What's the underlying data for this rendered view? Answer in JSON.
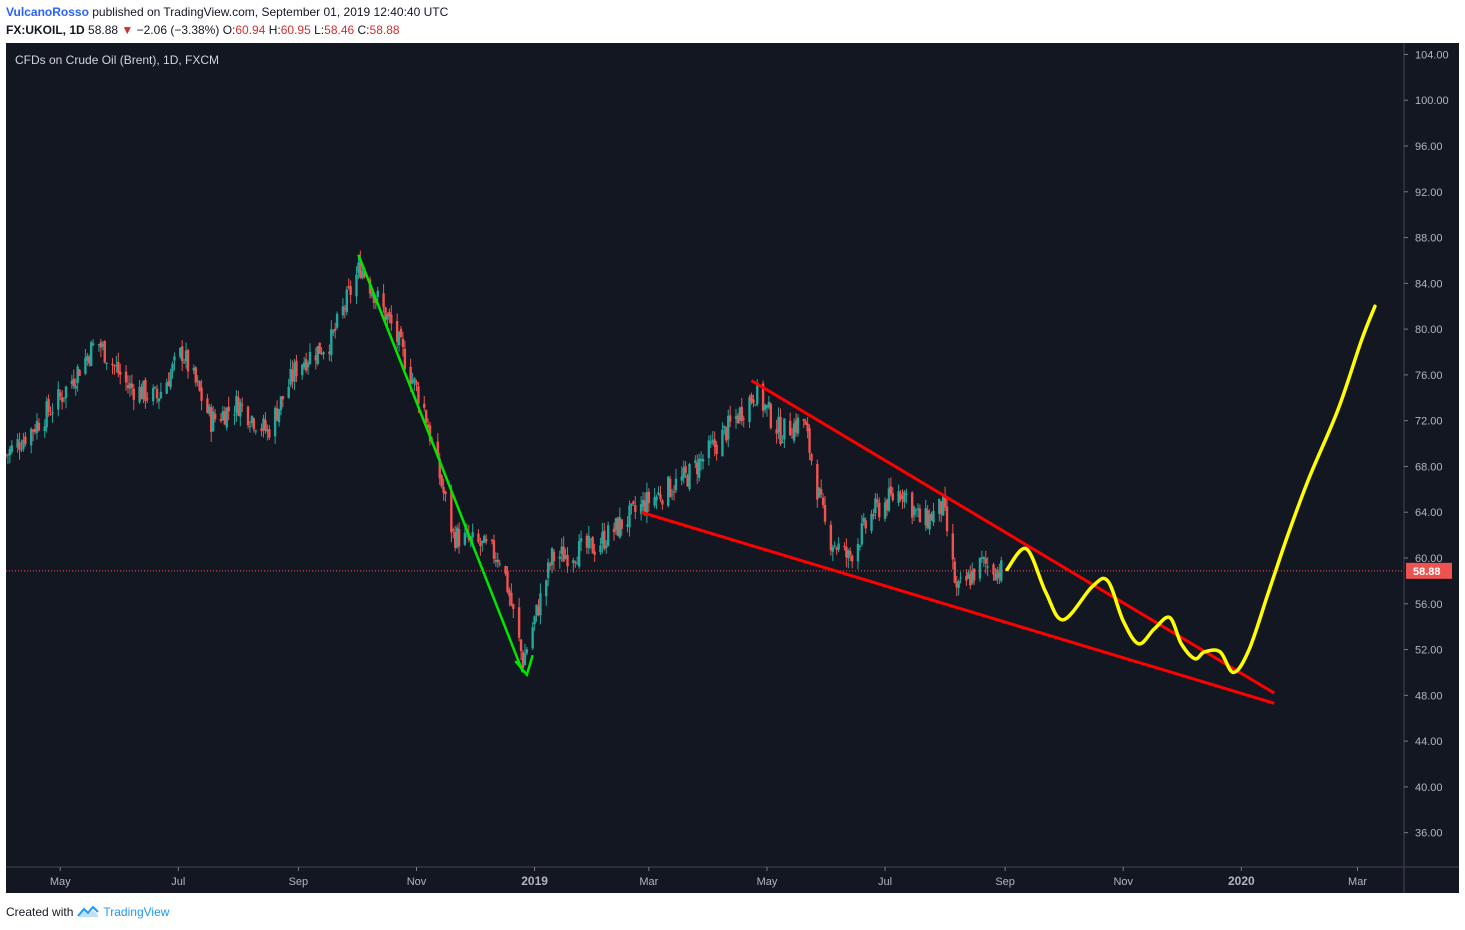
{
  "header": {
    "author": "VulcanoRosso",
    "published_text": "published on TradingView.com, September 01, 2019 12:40:40 UTC",
    "symbol": "FX:UKOIL, 1D",
    "last_price": "58.88",
    "change_arrow": "▼",
    "change": "−2.06 (−3.38%)",
    "o_label": "O:",
    "o_value": "60.94",
    "h_label": "H:",
    "h_value": "60.95",
    "l_label": "L:",
    "l_value": "58.46",
    "c_label": "C:",
    "c_value": "58.88"
  },
  "footer": {
    "created_with": "Created with",
    "brand": "TradingView",
    "logo_icon": "tradingview-logo-icon"
  },
  "colors": {
    "background": "#131722",
    "up": "#26a69a",
    "down": "#ef5350",
    "trend_green": "#00e600",
    "wedge_red": "#ff0000",
    "projection_yellow": "#ffff00",
    "price_line": "#ef5350",
    "axis_text": "#b2b5be"
  },
  "chart_data": {
    "type": "candlestick",
    "title": "CFDs on Crude Oil (Brent), 1D, FXCM",
    "ylim": [
      33,
      105
    ],
    "y_ticks": [
      "104.00",
      "100.00",
      "96.00",
      "92.00",
      "88.00",
      "84.00",
      "80.00",
      "76.00",
      "72.00",
      "68.00",
      "64.00",
      "60.00",
      "56.00",
      "52.00",
      "48.00",
      "44.00",
      "40.00",
      "36.00"
    ],
    "x_ticks": [
      "May",
      "Jul",
      "Sep",
      "Nov",
      "2019",
      "Mar",
      "May",
      "Jul",
      "Sep",
      "Nov",
      "2020",
      "Mar"
    ],
    "xlim": [
      "2018-04-03",
      "2020-03-25"
    ],
    "x_tick_dates": [
      "2018-05-01",
      "2018-07-01",
      "2018-09-01",
      "2018-11-01",
      "2019-01-01",
      "2019-03-01",
      "2019-05-01",
      "2019-07-01",
      "2019-09-01",
      "2019-11-01",
      "2020-01-01",
      "2020-03-01"
    ],
    "last_price": 58.88,
    "last_price_label": "58.88",
    "anchors": [
      {
        "date": "2018-04-03",
        "price": 69
      },
      {
        "date": "2018-04-15",
        "price": 71
      },
      {
        "date": "2018-05-01",
        "price": 74
      },
      {
        "date": "2018-05-20",
        "price": 79
      },
      {
        "date": "2018-06-05",
        "price": 75
      },
      {
        "date": "2018-06-20",
        "price": 74
      },
      {
        "date": "2018-07-03",
        "price": 78
      },
      {
        "date": "2018-07-18",
        "price": 72
      },
      {
        "date": "2018-08-01",
        "price": 73.5
      },
      {
        "date": "2018-08-16",
        "price": 71
      },
      {
        "date": "2018-09-01",
        "price": 77
      },
      {
        "date": "2018-09-18",
        "price": 79
      },
      {
        "date": "2018-10-03",
        "price": 85.5
      },
      {
        "date": "2018-10-20",
        "price": 80
      },
      {
        "date": "2018-11-05",
        "price": 73
      },
      {
        "date": "2018-11-20",
        "price": 62
      },
      {
        "date": "2018-12-05",
        "price": 61
      },
      {
        "date": "2018-12-15",
        "price": 60
      },
      {
        "date": "2018-12-26",
        "price": 51
      },
      {
        "date": "2019-01-10",
        "price": 60
      },
      {
        "date": "2019-02-01",
        "price": 61
      },
      {
        "date": "2019-02-15",
        "price": 63
      },
      {
        "date": "2019-03-01",
        "price": 65
      },
      {
        "date": "2019-03-20",
        "price": 67
      },
      {
        "date": "2019-04-05",
        "price": 70
      },
      {
        "date": "2019-04-25",
        "price": 74.5
      },
      {
        "date": "2019-05-08",
        "price": 71
      },
      {
        "date": "2019-05-20",
        "price": 72
      },
      {
        "date": "2019-06-01",
        "price": 62
      },
      {
        "date": "2019-06-12",
        "price": 60
      },
      {
        "date": "2019-06-25",
        "price": 64
      },
      {
        "date": "2019-07-10",
        "price": 66
      },
      {
        "date": "2019-07-20",
        "price": 63
      },
      {
        "date": "2019-07-31",
        "price": 64.5
      },
      {
        "date": "2019-08-07",
        "price": 57
      },
      {
        "date": "2019-08-20",
        "price": 59.5
      },
      {
        "date": "2019-08-30",
        "price": 58.88
      }
    ],
    "annotations": {
      "green_arrow": [
        {
          "date": "2018-10-02",
          "price": 86.5
        },
        {
          "date": "2018-12-26",
          "price": 50
        }
      ],
      "green_arrow_head": [
        {
          "date": "2018-12-22",
          "price": 51
        },
        {
          "date": "2018-12-28",
          "price": 49.8
        },
        {
          "date": "2018-12-31",
          "price": 51.5
        }
      ],
      "wedge_upper": [
        {
          "date": "2019-04-23",
          "price": 75.5
        },
        {
          "date": "2020-01-18",
          "price": 48.2
        }
      ],
      "wedge_lower": [
        {
          "date": "2019-02-25",
          "price": 64
        },
        {
          "date": "2020-01-18",
          "price": 47.3
        }
      ],
      "projection": [
        {
          "date": "2019-09-02",
          "price": 59
        },
        {
          "date": "2019-09-12",
          "price": 60.8
        },
        {
          "date": "2019-09-22",
          "price": 57
        },
        {
          "date": "2019-10-01",
          "price": 54.6
        },
        {
          "date": "2019-10-16",
          "price": 57.5
        },
        {
          "date": "2019-10-24",
          "price": 58
        },
        {
          "date": "2019-11-01",
          "price": 54.5
        },
        {
          "date": "2019-11-09",
          "price": 52.5
        },
        {
          "date": "2019-11-17",
          "price": 53.8
        },
        {
          "date": "2019-11-25",
          "price": 54.8
        },
        {
          "date": "2019-12-01",
          "price": 52.5
        },
        {
          "date": "2019-12-08",
          "price": 51.2
        },
        {
          "date": "2019-12-13",
          "price": 51.8
        },
        {
          "date": "2019-12-21",
          "price": 51.8
        },
        {
          "date": "2019-12-28",
          "price": 50
        },
        {
          "date": "2020-01-05",
          "price": 52
        },
        {
          "date": "2020-01-15",
          "price": 57
        },
        {
          "date": "2020-01-25",
          "price": 62
        },
        {
          "date": "2020-02-05",
          "price": 67
        },
        {
          "date": "2020-02-20",
          "price": 73
        },
        {
          "date": "2020-03-03",
          "price": 79
        },
        {
          "date": "2020-03-10",
          "price": 82
        }
      ]
    }
  }
}
